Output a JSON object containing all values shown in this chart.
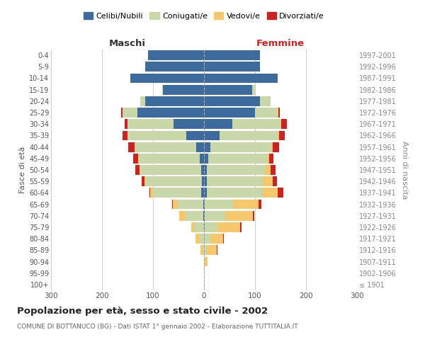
{
  "age_groups": [
    "100+",
    "95-99",
    "90-94",
    "85-89",
    "80-84",
    "75-79",
    "70-74",
    "65-69",
    "60-64",
    "55-59",
    "50-54",
    "45-49",
    "40-44",
    "35-39",
    "30-34",
    "25-29",
    "20-24",
    "15-19",
    "10-14",
    "5-9",
    "0-4"
  ],
  "birth_years": [
    "≤ 1901",
    "1902-1906",
    "1907-1911",
    "1912-1916",
    "1917-1921",
    "1922-1926",
    "1927-1931",
    "1932-1936",
    "1937-1941",
    "1942-1946",
    "1947-1951",
    "1952-1956",
    "1957-1961",
    "1962-1966",
    "1967-1971",
    "1972-1976",
    "1977-1981",
    "1982-1986",
    "1987-1991",
    "1992-1996",
    "1997-2001"
  ],
  "males": {
    "celibi": [
      0,
      0,
      0,
      0,
      0,
      0,
      1,
      1,
      5,
      4,
      5,
      8,
      15,
      35,
      60,
      130,
      115,
      80,
      145,
      115,
      110
    ],
    "coniugati": [
      0,
      0,
      0,
      2,
      8,
      20,
      35,
      50,
      95,
      110,
      120,
      120,
      120,
      115,
      90,
      30,
      10,
      2,
      0,
      0,
      0
    ],
    "vedovi": [
      0,
      0,
      0,
      5,
      8,
      5,
      12,
      10,
      5,
      3,
      2,
      1,
      1,
      0,
      0,
      0,
      0,
      0,
      0,
      0,
      0
    ],
    "divorziati": [
      0,
      0,
      0,
      0,
      0,
      0,
      0,
      2,
      2,
      5,
      8,
      10,
      12,
      10,
      5,
      2,
      0,
      0,
      0,
      0,
      0
    ]
  },
  "females": {
    "nubili": [
      0,
      0,
      0,
      0,
      0,
      1,
      1,
      2,
      5,
      5,
      5,
      8,
      12,
      30,
      55,
      100,
      110,
      95,
      145,
      110,
      110
    ],
    "coniugate": [
      0,
      0,
      2,
      5,
      12,
      25,
      40,
      55,
      110,
      110,
      115,
      115,
      120,
      115,
      95,
      45,
      20,
      5,
      0,
      0,
      0
    ],
    "vedove": [
      0,
      1,
      5,
      20,
      25,
      45,
      55,
      50,
      30,
      20,
      10,
      5,
      3,
      2,
      2,
      1,
      0,
      0,
      0,
      0,
      0
    ],
    "divorziate": [
      0,
      0,
      0,
      2,
      2,
      2,
      3,
      5,
      10,
      8,
      10,
      8,
      12,
      12,
      10,
      3,
      0,
      0,
      0,
      0,
      0
    ]
  },
  "colors": {
    "celibi": "#3D6B9E",
    "coniugati": "#C8D8A8",
    "vedovi": "#F5C86E",
    "divorziati": "#CC2222"
  },
  "title": "Popolazione per età, sesso e stato civile - 2002",
  "subtitle": "COMUNE DI BOTTANUCO (BG) - Dati ISTAT 1° gennaio 2002 - Elaborazione TUTTITALIA.IT",
  "xlabel_left": "Maschi",
  "xlabel_right": "Femmine",
  "ylabel_left": "Fasce di età",
  "ylabel_right": "Anni di nascita",
  "xlim": 300,
  "background_color": "#ffffff",
  "grid_color": "#cccccc"
}
